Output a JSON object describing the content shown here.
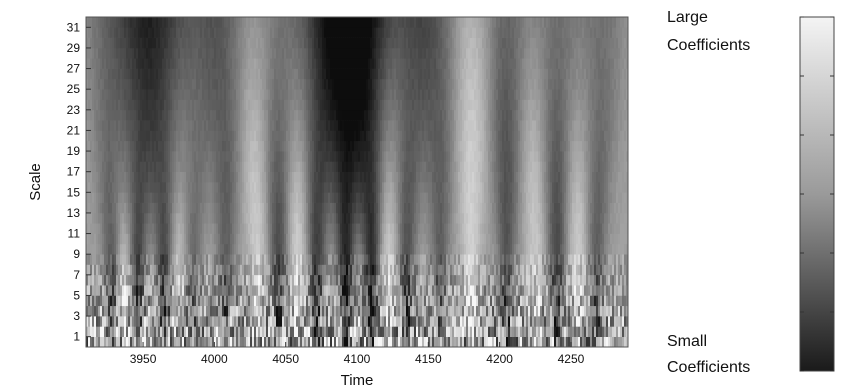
{
  "chart_data": {
    "type": "heatmap",
    "title": "",
    "xlabel": "Time",
    "ylabel": "Scale",
    "xlim": [
      3910,
      4290
    ],
    "ylim": [
      0,
      32
    ],
    "x_ticks": [
      3950,
      4000,
      4050,
      4100,
      4150,
      4200,
      4250
    ],
    "x_tick_labels": [
      "3950",
      "4000",
      "4050",
      "4100",
      "4150",
      "4200",
      "4250"
    ],
    "y_ticks": [
      1,
      3,
      5,
      7,
      9,
      11,
      13,
      15,
      17,
      19,
      21,
      23,
      25,
      27,
      29,
      31
    ],
    "y_tick_labels": [
      "1",
      "3",
      "5",
      "7",
      "9",
      "11",
      "13",
      "15",
      "17",
      "19",
      "21",
      "23",
      "25",
      "27",
      "29",
      "31"
    ],
    "colormap": "grayscale",
    "colorbar": {
      "top_label": [
        "Large",
        "Coefficients"
      ],
      "bottom_label": [
        "Small",
        "Coefficients"
      ],
      "top_color": "#f4f4f4",
      "bottom_color": "#1a1a1a"
    },
    "coefficient_ridges": [
      {
        "time": 3928,
        "type": "dark",
        "strength": 0.55
      },
      {
        "time": 3946,
        "type": "dark",
        "strength": 0.75
      },
      {
        "time": 3965,
        "type": "dark",
        "strength": 0.7
      },
      {
        "time": 3985,
        "type": "dark",
        "strength": 0.45
      },
      {
        "time": 4008,
        "type": "dark",
        "strength": 0.5
      },
      {
        "time": 4045,
        "type": "dark",
        "strength": 0.65
      },
      {
        "time": 4072,
        "type": "dark",
        "strength": 0.75
      },
      {
        "time": 4092,
        "type": "dark",
        "strength": 0.95
      },
      {
        "time": 4110,
        "type": "dark",
        "strength": 0.9
      },
      {
        "time": 4135,
        "type": "dark",
        "strength": 0.6
      },
      {
        "time": 4158,
        "type": "dark",
        "strength": 0.5
      },
      {
        "time": 4205,
        "type": "dark",
        "strength": 0.6
      },
      {
        "time": 4240,
        "type": "dark",
        "strength": 0.65
      },
      {
        "time": 4268,
        "type": "dark",
        "strength": 0.5
      },
      {
        "time": 3937,
        "type": "light",
        "strength": 0.5
      },
      {
        "time": 3975,
        "type": "light",
        "strength": 0.45
      },
      {
        "time": 4030,
        "type": "light",
        "strength": 0.5
      },
      {
        "time": 4058,
        "type": "light",
        "strength": 0.55
      },
      {
        "time": 4122,
        "type": "light",
        "strength": 0.5
      },
      {
        "time": 4180,
        "type": "light",
        "strength": 0.55
      },
      {
        "time": 4225,
        "type": "light",
        "strength": 0.45
      },
      {
        "time": 4255,
        "type": "light",
        "strength": 0.5
      }
    ]
  }
}
